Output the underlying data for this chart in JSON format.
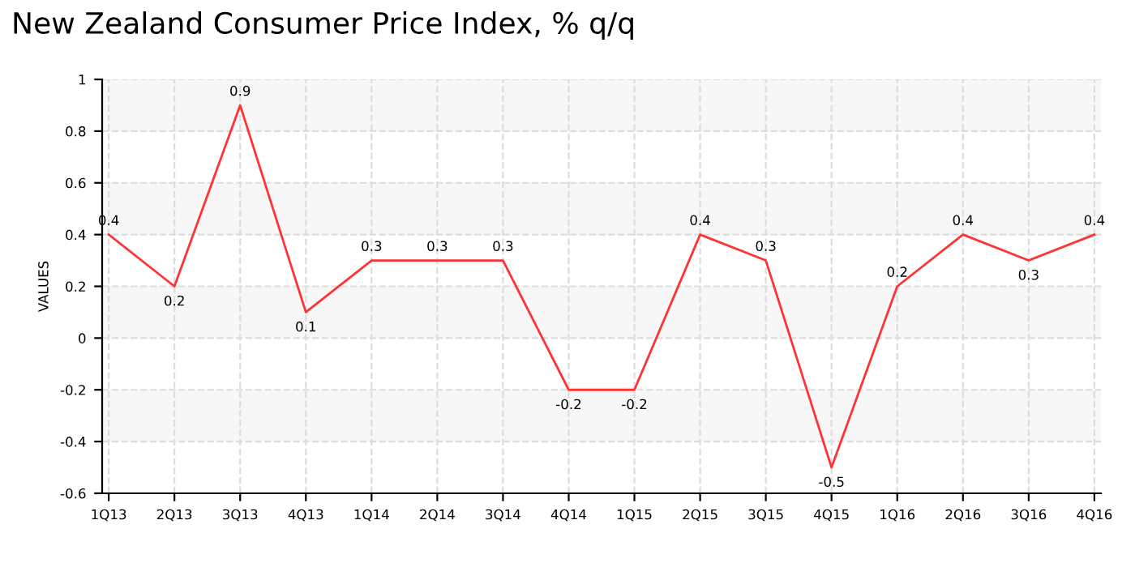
{
  "chart_data": {
    "type": "line",
    "title": "New Zealand Consumer Price Index, % q/q",
    "ylabel": "VALUES",
    "categories": [
      "1Q13",
      "2Q13",
      "3Q13",
      "4Q13",
      "1Q14",
      "2Q14",
      "3Q14",
      "4Q14",
      "1Q15",
      "2Q15",
      "3Q15",
      "4Q15",
      "1Q16",
      "2Q16",
      "3Q16",
      "4Q16"
    ],
    "series": [
      {
        "color": "#ff3333",
        "values": [
          0.4,
          0.2,
          0.9,
          0.1,
          0.3,
          0.3,
          0.3,
          -0.2,
          -0.2,
          0.4,
          0.3,
          -0.5,
          0.2,
          0.4,
          0.3,
          0.4
        ]
      }
    ],
    "ylim": [
      -0.6,
      1
    ],
    "yticks": [
      -0.6,
      -0.4,
      -0.2,
      0,
      0.2,
      0.4,
      0.6,
      0.8,
      1
    ],
    "bands": [
      {
        "axis": "y",
        "from": 0.8,
        "to": 1,
        "color": "#f7f7f7"
      },
      {
        "axis": "y",
        "from": 0.4,
        "to": 0.6,
        "color": "#f7f7f7"
      },
      {
        "axis": "y",
        "from": 0,
        "to": 0.2,
        "color": "#f7f7f7"
      },
      {
        "axis": "y",
        "from": -0.4,
        "to": -0.2,
        "color": "#f7f7f7"
      }
    ],
    "grid": true,
    "data_labels": true,
    "line_style": "solid",
    "marker": "none"
  }
}
